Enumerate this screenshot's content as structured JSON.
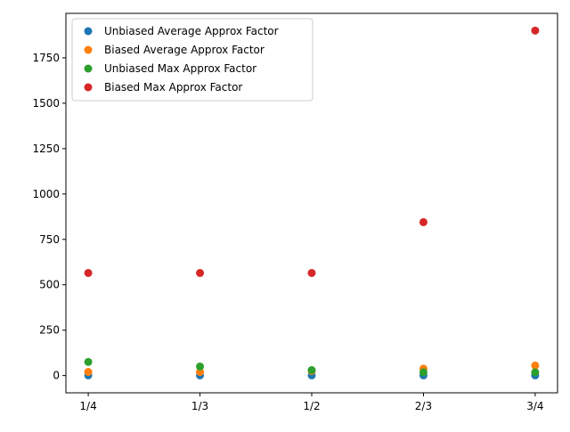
{
  "chart_data": {
    "type": "scatter",
    "x_categories": [
      "1/4",
      "1/3",
      "1/2",
      "2/3",
      "3/4"
    ],
    "y_ticks": [
      0,
      250,
      500,
      750,
      1000,
      1250,
      1500,
      1750
    ],
    "ylim": [
      -95,
      1995
    ],
    "grid": false,
    "legend_position": "top-left",
    "series": [
      {
        "name": "Unbiased Average Approx Factor",
        "color": "#1f77b4",
        "values": [
          1,
          1,
          1,
          1,
          1
        ]
      },
      {
        "name": "Biased Average Approx Factor",
        "color": "#ff7f0e",
        "values": [
          20,
          20,
          25,
          38,
          55
        ]
      },
      {
        "name": "Unbiased Max Approx Factor",
        "color": "#2ca02c",
        "values": [
          75,
          50,
          30,
          18,
          18
        ]
      },
      {
        "name": "Biased Max Approx Factor",
        "color": "#d62728",
        "values": [
          565,
          565,
          565,
          845,
          1900
        ]
      }
    ]
  }
}
